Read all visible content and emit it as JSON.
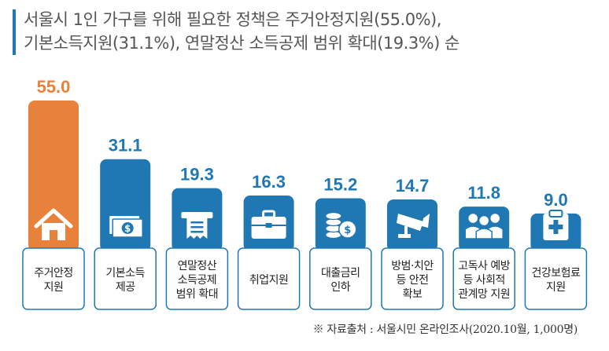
{
  "title": {
    "line1": "서울시 1인 가구를 위해 필요한 정책은 주거안정지원(55.0%),",
    "line2": "기본소득지원(31.1%), 연말정산 소득공제 범위 확대(19.3%) 순"
  },
  "source": "※ 자료출처 : 서울시민 온라인조사(2020.10월, 1,000명)",
  "colors": {
    "highlight": "#e8823a",
    "bar": "#1f78b4",
    "label_border": "#1f78b4",
    "title_bar": "#1f78b4"
  },
  "chart_data": {
    "type": "bar",
    "categories": [
      [
        "주거안정",
        "지원"
      ],
      [
        "기본소득",
        "제공"
      ],
      [
        "연말정산",
        "소득공제",
        "범위 확대"
      ],
      [
        "취업지원"
      ],
      [
        "대출금리",
        "인하"
      ],
      [
        "방범·치안",
        "등 안전",
        "확보"
      ],
      [
        "고독사 예방",
        "등 사회적",
        "관계망 지원"
      ],
      [
        "건강보험료",
        "지원"
      ]
    ],
    "values": [
      55.0,
      31.1,
      19.3,
      16.3,
      15.2,
      14.7,
      11.8,
      9.0
    ],
    "value_labels": [
      "55.0",
      "31.1",
      "19.3",
      "16.3",
      "15.2",
      "14.7",
      "11.8",
      "9.0"
    ],
    "icons": [
      "house-icon",
      "money-icon",
      "receipt-icon",
      "briefcase-icon",
      "coins-icon",
      "cctv-icon",
      "people-icon",
      "clipboard-icon"
    ],
    "highlight_index": 0,
    "ylim": [
      0,
      55
    ]
  }
}
